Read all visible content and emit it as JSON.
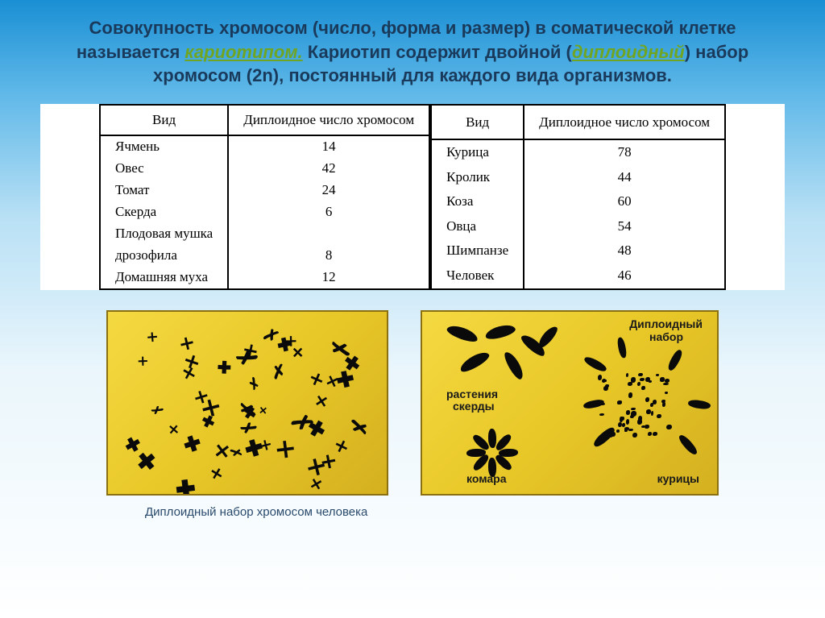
{
  "header": {
    "part1": "Совокупность хромосом (число, форма и размер) в соматической клетке называется ",
    "hl1": "кариотипом.",
    "part2": " Кариотип содержит двойной (",
    "hl2": "диплоидный",
    "part3": ") набор хромосом (2n), постоянный для каждого вида организмов."
  },
  "table_left": {
    "col1": "Вид",
    "col2": "Диплоидное число хромосом",
    "rows": [
      {
        "name": "Ячмень",
        "n": "14"
      },
      {
        "name": "Овес",
        "n": "42"
      },
      {
        "name": "Томат",
        "n": "24"
      },
      {
        "name": "Скерда",
        "n": "6"
      },
      {
        "name": "Плодовая мушка",
        "n": ""
      },
      {
        "name": "дрозофила",
        "n": "8"
      },
      {
        "name": "Домашняя муха",
        "n": "12"
      }
    ]
  },
  "table_right": {
    "col1": "Вид",
    "col2": "Диплоидное число хромосом",
    "rows": [
      {
        "name": "Курица",
        "n": "78"
      },
      {
        "name": "Кролик",
        "n": "44"
      },
      {
        "name": "Коза",
        "n": "60"
      },
      {
        "name": "Овца",
        "n": "54"
      },
      {
        "name": "Шимпанзе",
        "n": "48"
      },
      {
        "name": "Человек",
        "n": "46"
      }
    ]
  },
  "image_right_labels": {
    "l1": "Диплоидный",
    "l2": "набор",
    "l3": "растения",
    "l4": "скерды",
    "l5": "комара",
    "l6": "курицы"
  },
  "caption": "Диплоидный набор хромосом человека",
  "colors": {
    "bg_gradient_top": "#1a8fd4",
    "text_main": "#1a3a5c",
    "highlight": "#6fa520",
    "img_bg": "#f5d942",
    "chromo": "#0a0a0a"
  }
}
